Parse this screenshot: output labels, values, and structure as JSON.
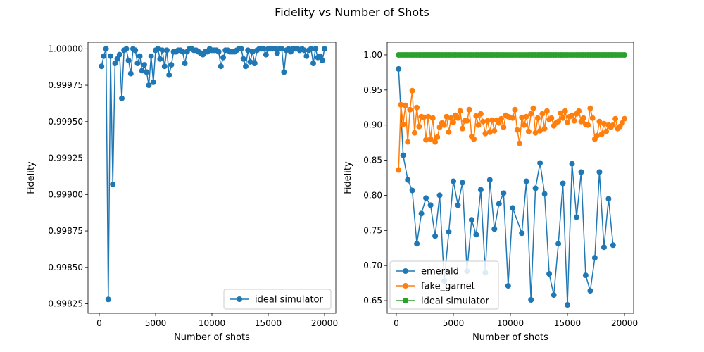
{
  "figure": {
    "suptitle": "Fidelity vs Number of Shots"
  },
  "colors": {
    "emerald": "#1f77b4",
    "fake_garnet": "#ff7f0e",
    "ideal": "#2ca02c"
  },
  "chart_data": [
    {
      "type": "line",
      "xlabel": "Number of shots",
      "ylabel": "Fidelity",
      "xlim": [
        -1000,
        21000
      ],
      "ylim": [
        0.998185,
        1.000045
      ],
      "xticks": [
        0,
        5000,
        10000,
        15000,
        20000
      ],
      "xtick_labels": [
        "0",
        "5000",
        "10000",
        "15000",
        "20000"
      ],
      "yticks": [
        0.99825,
        0.9985,
        0.99875,
        0.999,
        0.99925,
        0.9995,
        0.99975,
        1.0
      ],
      "ytick_labels": [
        "0.99825",
        "0.99850",
        "0.99875",
        "0.99900",
        "0.99925",
        "0.99950",
        "0.99975",
        "1.00000"
      ],
      "legend_position": "lower-right",
      "grid": false,
      "series": [
        {
          "name": "ideal simulator",
          "color": "#1f77b4",
          "x": [
            200,
            400,
            600,
            800,
            1000,
            1200,
            1400,
            1600,
            1800,
            2000,
            2200,
            2400,
            2600,
            2800,
            3000,
            3200,
            3400,
            3600,
            3800,
            4000,
            4200,
            4400,
            4600,
            4800,
            5000,
            5200,
            5400,
            5600,
            5800,
            6000,
            6200,
            6400,
            6600,
            6800,
            7000,
            7200,
            7400,
            7600,
            7800,
            8000,
            8200,
            8400,
            8600,
            8800,
            9000,
            9200,
            9400,
            9600,
            9800,
            10000,
            10200,
            10400,
            10600,
            10800,
            11000,
            11200,
            11400,
            11600,
            11800,
            12000,
            12200,
            12400,
            12600,
            12800,
            13000,
            13200,
            13400,
            13600,
            13800,
            14000,
            14200,
            14400,
            14600,
            14800,
            15000,
            15200,
            15400,
            15600,
            15800,
            16000,
            16200,
            16400,
            16600,
            16800,
            17000,
            17200,
            17400,
            17600,
            17800,
            18000,
            18200,
            18400,
            18600,
            18800,
            19000,
            19200,
            19400,
            19600,
            19800,
            20000
          ],
          "values": [
            0.99988,
            0.99995,
            1.0,
            0.99828,
            0.99995,
            0.99907,
            0.9999,
            0.99993,
            0.99996,
            0.99966,
            0.99999,
            1.0,
            0.99992,
            0.99983,
            1.0,
            0.99999,
            0.9999,
            0.99995,
            0.99985,
            0.99989,
            0.99984,
            0.99975,
            0.99995,
            0.99977,
            0.99999,
            1.0,
            0.99993,
            0.99999,
            0.99988,
            0.99999,
            0.99982,
            0.99989,
            0.99998,
            0.99998,
            0.99999,
            0.99999,
            0.99998,
            0.9999,
            0.99998,
            1.0,
            1.0,
            0.99999,
            0.99999,
            0.99998,
            0.99997,
            0.99996,
            0.99998,
            0.99998,
            1.0,
            0.99999,
            0.99999,
            0.99999,
            0.99998,
            0.99988,
            0.99994,
            0.99999,
            0.99999,
            0.99998,
            0.99998,
            0.99998,
            0.99999,
            1.0,
            1.0,
            0.99993,
            0.99988,
            0.99999,
            0.99991,
            0.99998,
            0.9999,
            0.99999,
            1.0,
            1.0,
            1.0,
            0.99996,
            1.0,
            1.0,
            1.0,
            1.0,
            0.99997,
            1.0,
            1.0,
            0.99984,
            0.99999,
            1.0,
            0.99998,
            1.0,
            1.0,
            1.0,
            0.99999,
            1.0,
            0.99999,
            0.99995,
            0.99999,
            1.0,
            0.9999,
            1.0,
            0.99994,
            0.99995,
            0.99992,
            1.0
          ]
        }
      ]
    },
    {
      "type": "line",
      "xlabel": "Number of shots",
      "ylabel": "Fidelity",
      "xlim": [
        -800,
        20800
      ],
      "ylim": [
        0.632,
        1.018
      ],
      "xticks": [
        0,
        5000,
        10000,
        15000,
        20000
      ],
      "xtick_labels": [
        "0",
        "5000",
        "10000",
        "15000",
        "20000"
      ],
      "yticks": [
        0.65,
        0.7,
        0.75,
        0.8,
        0.85,
        0.9,
        0.95,
        1.0
      ],
      "ytick_labels": [
        "0.65",
        "0.70",
        "0.75",
        "0.80",
        "0.85",
        "0.90",
        "0.95",
        "1.00"
      ],
      "legend_position": "lower-left",
      "grid": false,
      "series": [
        {
          "name": "emerald",
          "color": "#1f77b4",
          "x": [
            200,
            600,
            1000,
            1400,
            1800,
            2200,
            2600,
            3000,
            3400,
            3800,
            4200,
            4600,
            5000,
            5400,
            5800,
            6200,
            6600,
            7000,
            7400,
            7800,
            8200,
            8600,
            9000,
            9400,
            9800,
            10200,
            11000,
            11400,
            11800,
            12200,
            12600,
            13000,
            13400,
            13800,
            14200,
            14600,
            15000,
            15400,
            15800,
            16200,
            16600,
            17000,
            17400,
            17800,
            18200,
            18600,
            19000
          ],
          "values": [
            0.98,
            0.857,
            0.822,
            0.807,
            0.731,
            0.774,
            0.796,
            0.786,
            0.742,
            0.8,
            0.678,
            0.748,
            0.82,
            0.786,
            0.818,
            0.692,
            0.765,
            0.744,
            0.808,
            0.69,
            0.822,
            0.752,
            0.788,
            0.803,
            0.671,
            0.782,
            0.746,
            0.82,
            0.651,
            0.81,
            0.846,
            0.802,
            0.688,
            0.658,
            0.731,
            0.817,
            0.644,
            0.845,
            0.769,
            0.833,
            0.686,
            0.664,
            0.711,
            0.833,
            0.726,
            0.795,
            0.729
          ]
        },
        {
          "name": "fake_garnet",
          "color": "#ff7f0e",
          "x": [
            200,
            400,
            600,
            800,
            1000,
            1200,
            1400,
            1600,
            1800,
            2000,
            2200,
            2400,
            2600,
            2800,
            3000,
            3200,
            3400,
            3600,
            3800,
            4000,
            4200,
            4400,
            4600,
            4800,
            5000,
            5200,
            5400,
            5600,
            5800,
            6000,
            6200,
            6400,
            6600,
            6800,
            7000,
            7200,
            7400,
            7600,
            7800,
            8000,
            8200,
            8400,
            8600,
            8800,
            9000,
            9200,
            9400,
            9600,
            9800,
            10000,
            10200,
            10400,
            10600,
            10800,
            11000,
            11200,
            11400,
            11600,
            11800,
            12000,
            12200,
            12400,
            12600,
            12800,
            13000,
            13200,
            13400,
            13600,
            13800,
            14000,
            14200,
            14400,
            14600,
            14800,
            15000,
            15200,
            15400,
            15600,
            15800,
            16000,
            16200,
            16400,
            16600,
            16800,
            17000,
            17200,
            17400,
            17600,
            17800,
            18000,
            18200,
            18400,
            18600,
            18800,
            19000,
            19200,
            19400,
            19600,
            19800,
            20000
          ],
          "values": [
            0.836,
            0.929,
            0.901,
            0.928,
            0.876,
            0.922,
            0.949,
            0.889,
            0.925,
            0.898,
            0.912,
            0.911,
            0.879,
            0.912,
            0.88,
            0.91,
            0.876,
            0.883,
            0.897,
            0.903,
            0.9,
            0.912,
            0.89,
            0.91,
            0.904,
            0.914,
            0.91,
            0.92,
            0.895,
            0.906,
            0.906,
            0.922,
            0.884,
            0.88,
            0.913,
            0.9,
            0.916,
            0.905,
            0.888,
            0.906,
            0.89,
            0.907,
            0.892,
            0.907,
            0.903,
            0.909,
            0.897,
            0.914,
            0.912,
            0.911,
            0.91,
            0.922,
            0.893,
            0.874,
            0.911,
            0.9,
            0.912,
            0.891,
            0.916,
            0.924,
            0.889,
            0.91,
            0.892,
            0.916,
            0.895,
            0.92,
            0.908,
            0.91,
            0.899,
            0.903,
            0.905,
            0.917,
            0.91,
            0.92,
            0.904,
            0.912,
            0.914,
            0.906,
            0.916,
            0.92,
            0.905,
            0.91,
            0.901,
            0.9,
            0.924,
            0.91,
            0.88,
            0.885,
            0.905,
            0.887,
            0.902,
            0.891,
            0.9,
            0.897,
            0.9,
            0.909,
            0.895,
            0.898,
            0.903,
            0.909
          ]
        },
        {
          "name": "ideal simulator",
          "color": "#2ca02c",
          "x": [
            200,
            400,
            600,
            800,
            1000,
            1200,
            1400,
            1600,
            1800,
            2000,
            2200,
            2400,
            2600,
            2800,
            3000,
            3200,
            3400,
            3600,
            3800,
            4000,
            4200,
            4400,
            4600,
            4800,
            5000,
            5200,
            5400,
            5600,
            5800,
            6000,
            6200,
            6400,
            6600,
            6800,
            7000,
            7200,
            7400,
            7600,
            7800,
            8000,
            8200,
            8400,
            8600,
            8800,
            9000,
            9200,
            9400,
            9600,
            9800,
            10000,
            10200,
            10400,
            10600,
            10800,
            11000,
            11200,
            11400,
            11600,
            11800,
            12000,
            12200,
            12400,
            12600,
            12800,
            13000,
            13200,
            13400,
            13600,
            13800,
            14000,
            14200,
            14400,
            14600,
            14800,
            15000,
            15200,
            15400,
            15600,
            15800,
            16000,
            16200,
            16400,
            16600,
            16800,
            17000,
            17200,
            17400,
            17600,
            17800,
            18000,
            18200,
            18400,
            18600,
            18800,
            19000,
            19200,
            19400,
            19600,
            19800,
            20000
          ],
          "values": [
            1.0,
            1.0,
            1.0,
            1.0,
            1.0,
            1.0,
            1.0,
            1.0,
            1.0,
            1.0,
            1.0,
            1.0,
            1.0,
            1.0,
            1.0,
            1.0,
            1.0,
            1.0,
            1.0,
            1.0,
            1.0,
            1.0,
            1.0,
            1.0,
            1.0,
            1.0,
            1.0,
            1.0,
            1.0,
            1.0,
            1.0,
            1.0,
            1.0,
            1.0,
            1.0,
            1.0,
            1.0,
            1.0,
            1.0,
            1.0,
            1.0,
            1.0,
            1.0,
            1.0,
            1.0,
            1.0,
            1.0,
            1.0,
            1.0,
            1.0,
            1.0,
            1.0,
            1.0,
            1.0,
            1.0,
            1.0,
            1.0,
            1.0,
            1.0,
            1.0,
            1.0,
            1.0,
            1.0,
            1.0,
            1.0,
            1.0,
            1.0,
            1.0,
            1.0,
            1.0,
            1.0,
            1.0,
            1.0,
            1.0,
            1.0,
            1.0,
            1.0,
            1.0,
            1.0,
            1.0,
            1.0,
            1.0,
            1.0,
            1.0,
            1.0,
            1.0,
            1.0,
            1.0,
            1.0,
            1.0,
            1.0,
            1.0,
            1.0,
            1.0,
            1.0,
            1.0,
            1.0,
            1.0,
            1.0,
            1.0
          ]
        }
      ]
    }
  ]
}
